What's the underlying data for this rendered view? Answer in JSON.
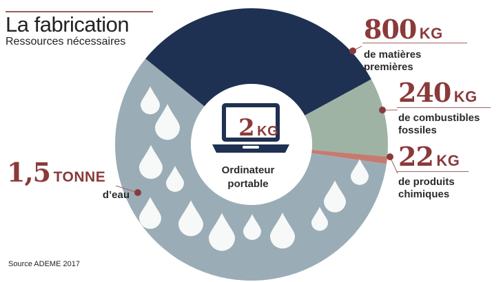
{
  "header": {
    "title": "La fabrication",
    "subtitle": "Ressources nécessaires"
  },
  "center": {
    "value": "2",
    "unit": "KG",
    "label_line1": "Ordinateur",
    "label_line2": "portable"
  },
  "callouts": {
    "materials": {
      "value": "800",
      "unit": "KG",
      "line1": "de matières",
      "line2": "premières"
    },
    "fuels": {
      "value": "240",
      "unit": "KG",
      "line1": "de combustibles",
      "line2": "fossiles"
    },
    "chem": {
      "value": "22",
      "unit": "KG",
      "line1": "de produits",
      "line2": "chimiques"
    },
    "water": {
      "value": "1,5",
      "unit": "TONNE",
      "line1": "d’eau"
    }
  },
  "source": "Source ADEME 2017",
  "colors": {
    "materials": "#1f3152",
    "fuels": "#9fb3a4",
    "chem": "#c67b6f",
    "water": "#9aadb6",
    "accent": "#8b3a3a"
  },
  "chart_data": {
    "type": "pie",
    "title": "La fabrication",
    "subtitle": "Ressources nécessaires",
    "unit": "kg",
    "slices": [
      {
        "label": "de matières premières",
        "value": 800,
        "display": "800 KG",
        "color": "#1f3152"
      },
      {
        "label": "de combustibles fossiles",
        "value": 240,
        "display": "240 KG",
        "color": "#9fb3a4"
      },
      {
        "label": "de produits chimiques",
        "value": 22,
        "display": "22 KG",
        "color": "#c67b6f"
      },
      {
        "label": "d’eau",
        "value": 1500,
        "display": "1,5 TONNE",
        "color": "#9aadb6"
      }
    ],
    "center_label": "2 KG Ordinateur portable",
    "icons": [
      "laptop-icon",
      "water-drop-icon"
    ]
  }
}
